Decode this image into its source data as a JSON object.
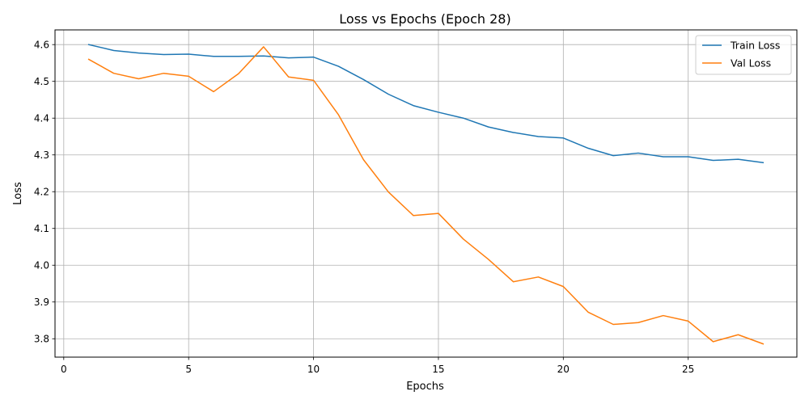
{
  "chart_data": {
    "type": "line",
    "title": "Loss vs Epochs (Epoch 28)",
    "xlabel": "Epochs",
    "ylabel": "Loss",
    "xlim": [
      -0.35,
      29.35
    ],
    "ylim": [
      3.75,
      4.64
    ],
    "xticks": [
      0,
      5,
      10,
      15,
      20,
      25
    ],
    "yticks": [
      3.8,
      3.9,
      4.0,
      4.1,
      4.2,
      4.3,
      4.4,
      4.5,
      4.6
    ],
    "grid": true,
    "legend_position": "top-right",
    "x": [
      1,
      2,
      3,
      4,
      5,
      6,
      7,
      8,
      9,
      10,
      11,
      12,
      13,
      14,
      15,
      16,
      17,
      18,
      19,
      20,
      21,
      22,
      23,
      24,
      25,
      26,
      27,
      28
    ],
    "series": [
      {
        "name": "Train Loss",
        "color": "#1f77b4",
        "values": [
          4.6,
          4.584,
          4.577,
          4.573,
          4.574,
          4.568,
          4.568,
          4.569,
          4.564,
          4.566,
          4.541,
          4.505,
          4.465,
          4.434,
          4.416,
          4.4,
          4.376,
          4.361,
          4.35,
          4.346,
          4.318,
          4.298,
          4.305,
          4.295,
          4.295,
          4.285,
          4.288,
          4.279
        ]
      },
      {
        "name": "Val Loss",
        "color": "#ff7f0e",
        "values": [
          4.56,
          4.522,
          4.507,
          4.522,
          4.514,
          4.472,
          4.521,
          4.594,
          4.512,
          4.503,
          4.409,
          4.287,
          4.199,
          4.135,
          4.141,
          4.071,
          4.016,
          3.955,
          3.968,
          3.942,
          3.872,
          3.839,
          3.844,
          3.863,
          3.848,
          3.792,
          3.811,
          3.786
        ]
      }
    ]
  }
}
